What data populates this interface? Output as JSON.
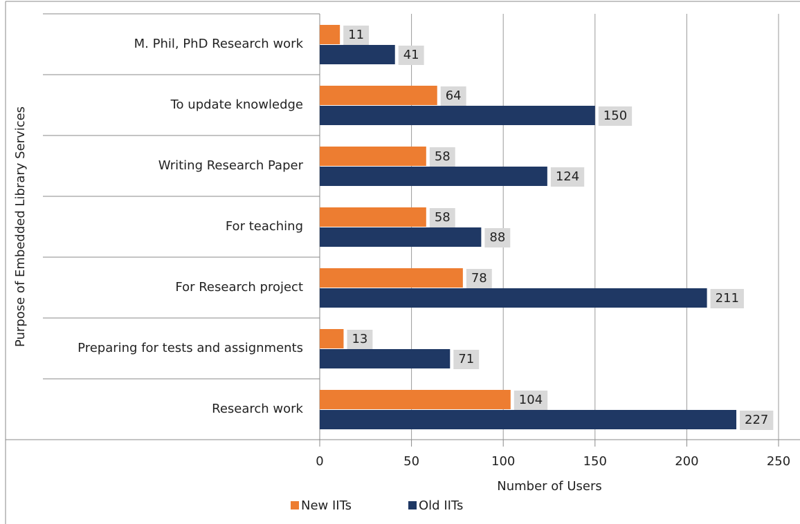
{
  "chart_data": {
    "type": "bar",
    "orientation": "horizontal",
    "x_label": "Number of Users",
    "y_label": "Purpose of Embedded Library Services",
    "categories": [
      "M. Phil, PhD Research work",
      "To update knowledge",
      "Writing Research Paper",
      "For teaching",
      "For Research project",
      "Preparing for tests and assignments",
      "Research work"
    ],
    "series": [
      {
        "name": "New IITs",
        "color": "#ed7d31",
        "values": [
          11,
          64,
          58,
          58,
          78,
          13,
          104
        ]
      },
      {
        "name": "Old IITs",
        "color": "#1f3864",
        "values": [
          41,
          150,
          124,
          88,
          211,
          71,
          227
        ]
      }
    ],
    "xlim": [
      0,
      250
    ],
    "xticks": [
      0,
      50,
      100,
      150,
      200,
      250
    ],
    "grid": true,
    "legend": "bottom"
  }
}
